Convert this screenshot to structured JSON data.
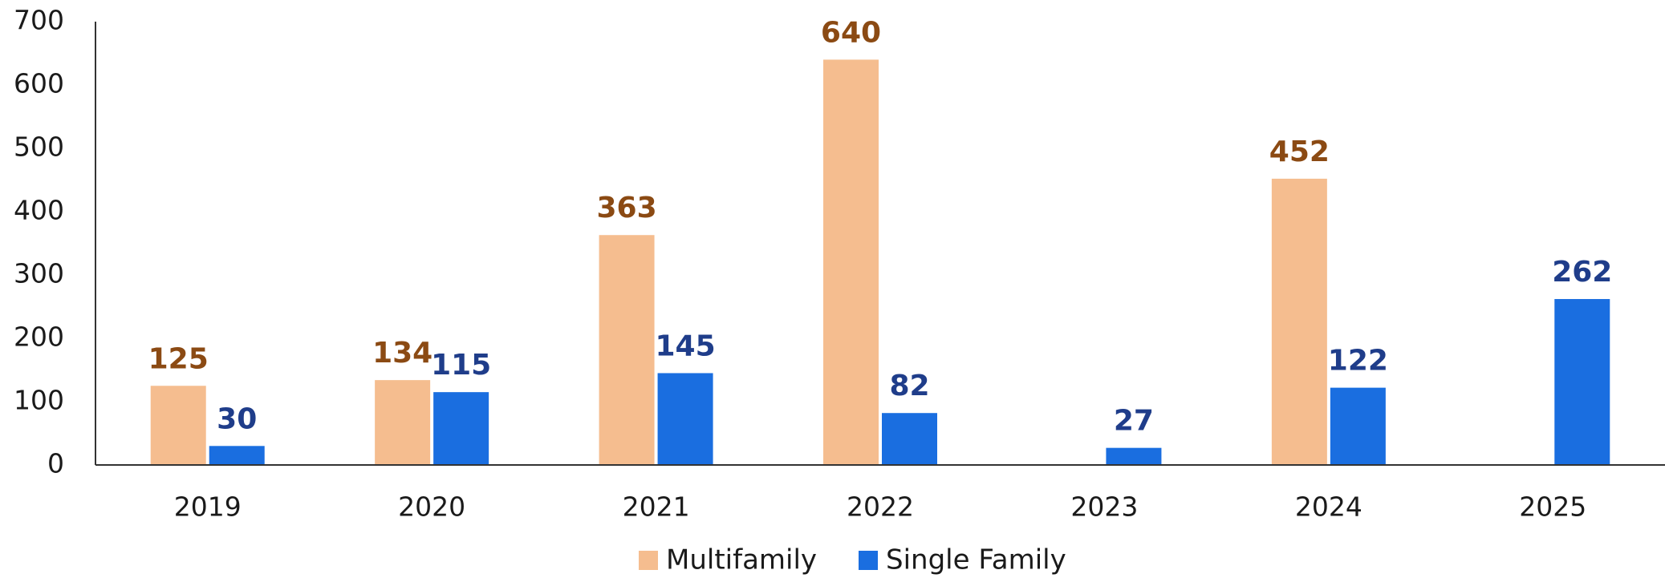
{
  "chart_data": {
    "type": "bar",
    "categories": [
      "2019",
      "2020",
      "2021",
      "2022",
      "2023",
      "2024",
      "2025"
    ],
    "series": [
      {
        "name": "Multifamily",
        "color": "#f5bd8f",
        "label_color": "#8b4a13",
        "values": [
          125,
          134,
          363,
          640,
          null,
          452,
          null
        ]
      },
      {
        "name": "Single Family",
        "color": "#1a6ee0",
        "label_color": "#1f3d8a",
        "values": [
          30,
          115,
          145,
          82,
          27,
          122,
          262
        ]
      }
    ],
    "ylim": [
      0,
      700
    ],
    "yticks": [
      0,
      100,
      200,
      300,
      400,
      500,
      600,
      700
    ],
    "grid": false,
    "legend": "bottom"
  }
}
